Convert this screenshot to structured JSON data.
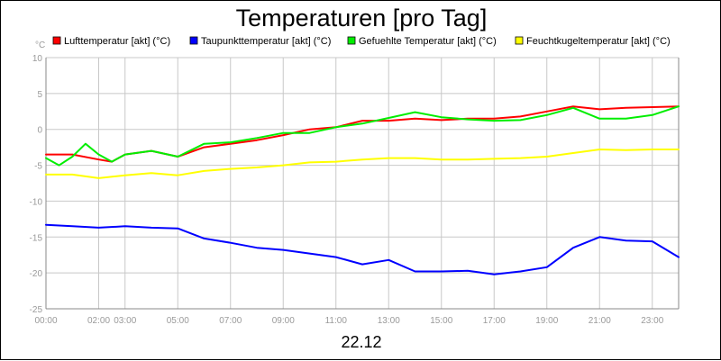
{
  "chart_data": {
    "type": "line",
    "title": "Temperaturen [pro Tag]",
    "ylabel": "°C",
    "xlabel": "22.12",
    "ylim": [
      -25,
      10
    ],
    "xlim": [
      0,
      24
    ],
    "y_ticks": [
      10,
      5,
      0,
      -5,
      -10,
      -15,
      -20,
      -25
    ],
    "x_ticks": [
      {
        "value": 0,
        "label": "00:00"
      },
      {
        "value": 2,
        "label": "02:00"
      },
      {
        "value": 3,
        "label": "03:00"
      },
      {
        "value": 5,
        "label": "05:00"
      },
      {
        "value": 7,
        "label": "07:00"
      },
      {
        "value": 9,
        "label": "09:00"
      },
      {
        "value": 11,
        "label": "11:00"
      },
      {
        "value": 13,
        "label": "13:00"
      },
      {
        "value": 15,
        "label": "15:00"
      },
      {
        "value": 17,
        "label": "17:00"
      },
      {
        "value": 19,
        "label": "19:00"
      },
      {
        "value": 21,
        "label": "21:00"
      },
      {
        "value": 23,
        "label": "23:00"
      }
    ],
    "grid": true,
    "legend_position": "top",
    "series": [
      {
        "name": "Lufttemperatur [akt] (°C)",
        "color": "#ff0000",
        "x": [
          0,
          1,
          2,
          2.5,
          3,
          4,
          5,
          6,
          7,
          8,
          9,
          10,
          11,
          12,
          13,
          14,
          15,
          16,
          17,
          18,
          19,
          20,
          21,
          22,
          23,
          24
        ],
        "y": [
          -3.5,
          -3.5,
          -4.2,
          -4.5,
          -3.5,
          -3,
          -3.8,
          -2.5,
          -2,
          -1.5,
          -0.8,
          0,
          0.3,
          1.2,
          1.2,
          1.5,
          1.3,
          1.5,
          1.5,
          1.8,
          2.5,
          3.2,
          2.8,
          3,
          3.1,
          3.2
        ]
      },
      {
        "name": "Taupunkttemperatur [akt] (°C)",
        "color": "#0000ff",
        "x": [
          0,
          1,
          2,
          3,
          4,
          5,
          6,
          7,
          8,
          9,
          10,
          11,
          12,
          13,
          14,
          15,
          16,
          17,
          18,
          19,
          20,
          21,
          22,
          23,
          24
        ],
        "y": [
          -13.3,
          -13.5,
          -13.7,
          -13.5,
          -13.7,
          -13.8,
          -15.2,
          -15.8,
          -16.5,
          -16.8,
          -17.3,
          -17.8,
          -18.8,
          -18.2,
          -19.8,
          -19.8,
          -19.7,
          -20.2,
          -19.8,
          -19.2,
          -16.5,
          -15,
          -15.5,
          -15.6,
          -17.8
        ]
      },
      {
        "name": "Gefuehlte Temperatur [akt] (°C)",
        "color": "#00ee00",
        "x": [
          0,
          0.5,
          1,
          1.5,
          2,
          2.5,
          3,
          4,
          5,
          6,
          7,
          8,
          9,
          10,
          11,
          12,
          13,
          14,
          15,
          16,
          17,
          18,
          19,
          20,
          21,
          22,
          23,
          24
        ],
        "y": [
          -4,
          -5,
          -3.8,
          -2,
          -3.5,
          -4.5,
          -3.5,
          -3,
          -3.8,
          -2,
          -1.8,
          -1.2,
          -0.5,
          -0.5,
          0.3,
          0.8,
          1.6,
          2.4,
          1.7,
          1.4,
          1.2,
          1.3,
          2,
          3,
          1.5,
          1.5,
          2,
          3.2
        ]
      },
      {
        "name": "Feuchtkugeltemperatur [akt] (°C)",
        "color": "#ffff00",
        "x": [
          0,
          1,
          2,
          3,
          4,
          5,
          6,
          7,
          8,
          9,
          10,
          11,
          12,
          13,
          14,
          15,
          16,
          17,
          18,
          19,
          20,
          21,
          22,
          23,
          24
        ],
        "y": [
          -6.3,
          -6.3,
          -6.8,
          -6.4,
          -6.1,
          -6.4,
          -5.8,
          -5.5,
          -5.3,
          -5,
          -4.6,
          -4.5,
          -4.2,
          -4,
          -4,
          -4.2,
          -4.2,
          -4.1,
          -4,
          -3.8,
          -3.3,
          -2.8,
          -2.9,
          -2.8,
          -2.8
        ]
      }
    ]
  }
}
